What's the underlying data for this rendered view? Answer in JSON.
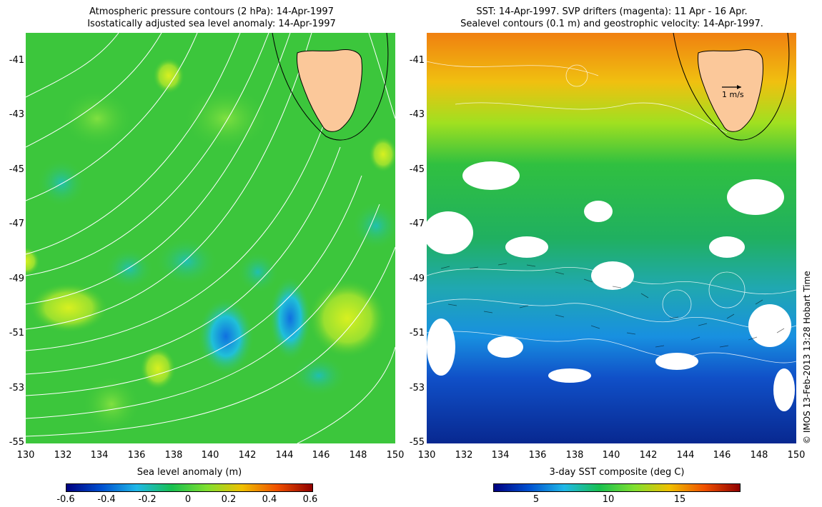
{
  "left_panel": {
    "title_line1": "Atmospheric pressure contours (2 hPa): 14-Apr-1997",
    "title_line2": "Isostatically adjusted sea level anomaly: 14-Apr-1997",
    "colorbar_label": "Sea level anomaly (m)",
    "colorbar_ticks": [
      "-0.6",
      "-0.4",
      "-0.2",
      "0",
      "0.2",
      "0.4",
      "0.6"
    ],
    "colormap_hex": [
      "#000080",
      "#0050d0",
      "#20b8e8",
      "#18c050",
      "#80e030",
      "#f0c000",
      "#f05000",
      "#900000"
    ]
  },
  "right_panel": {
    "title_line1": "SST: 14-Apr-1997. SVP drifters (magenta): 11 Apr - 16 Apr.",
    "title_line2": "Sealevel contours (0.1 m) and geostrophic velocity: 14-Apr-1997.",
    "scale_arrow_label": "1 m/s",
    "colorbar_label": "3-day SST composite (deg C)",
    "colorbar_ticks": [
      "5",
      "10",
      "15"
    ],
    "colormap_hex": [
      "#000080",
      "#0050d0",
      "#20b8e8",
      "#18c050",
      "#80e030",
      "#f0c000",
      "#f05000",
      "#900000"
    ]
  },
  "axes": {
    "y_ticks": [
      "-41",
      "-43",
      "-45",
      "-47",
      "-49",
      "-51",
      "-53",
      "-55"
    ],
    "x_ticks": [
      "130",
      "132",
      "134",
      "136",
      "138",
      "140",
      "142",
      "144",
      "146",
      "148",
      "150"
    ]
  },
  "landmass": {
    "name": "Tasmania",
    "fill": "#fbc89a"
  },
  "credit": "© IMOS 13-Feb-2013 13:28 Hobart Time"
}
